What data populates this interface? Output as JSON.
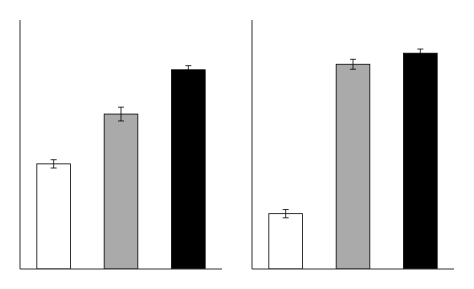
{
  "chart_data": [
    {
      "type": "bar",
      "categories": [
        null,
        null,
        null
      ],
      "values": [
        0.38,
        0.56,
        0.72
      ],
      "errors": [
        0.015,
        0.025,
        0.015
      ],
      "colors": [
        "white",
        "#AAAAAA",
        "black"
      ],
      "ylim": [
        0,
        0.9
      ],
      "tick_labels": false,
      "grid": false
    },
    {
      "type": "bar",
      "categories": [
        null,
        null,
        null
      ],
      "values": [
        0.2,
        0.74,
        0.78
      ],
      "errors": [
        0.015,
        0.018,
        0.015
      ],
      "colors": [
        "white",
        "#AAAAAA",
        "black"
      ],
      "ylim": [
        0,
        0.9
      ],
      "tick_labels": false,
      "grid": false
    }
  ]
}
